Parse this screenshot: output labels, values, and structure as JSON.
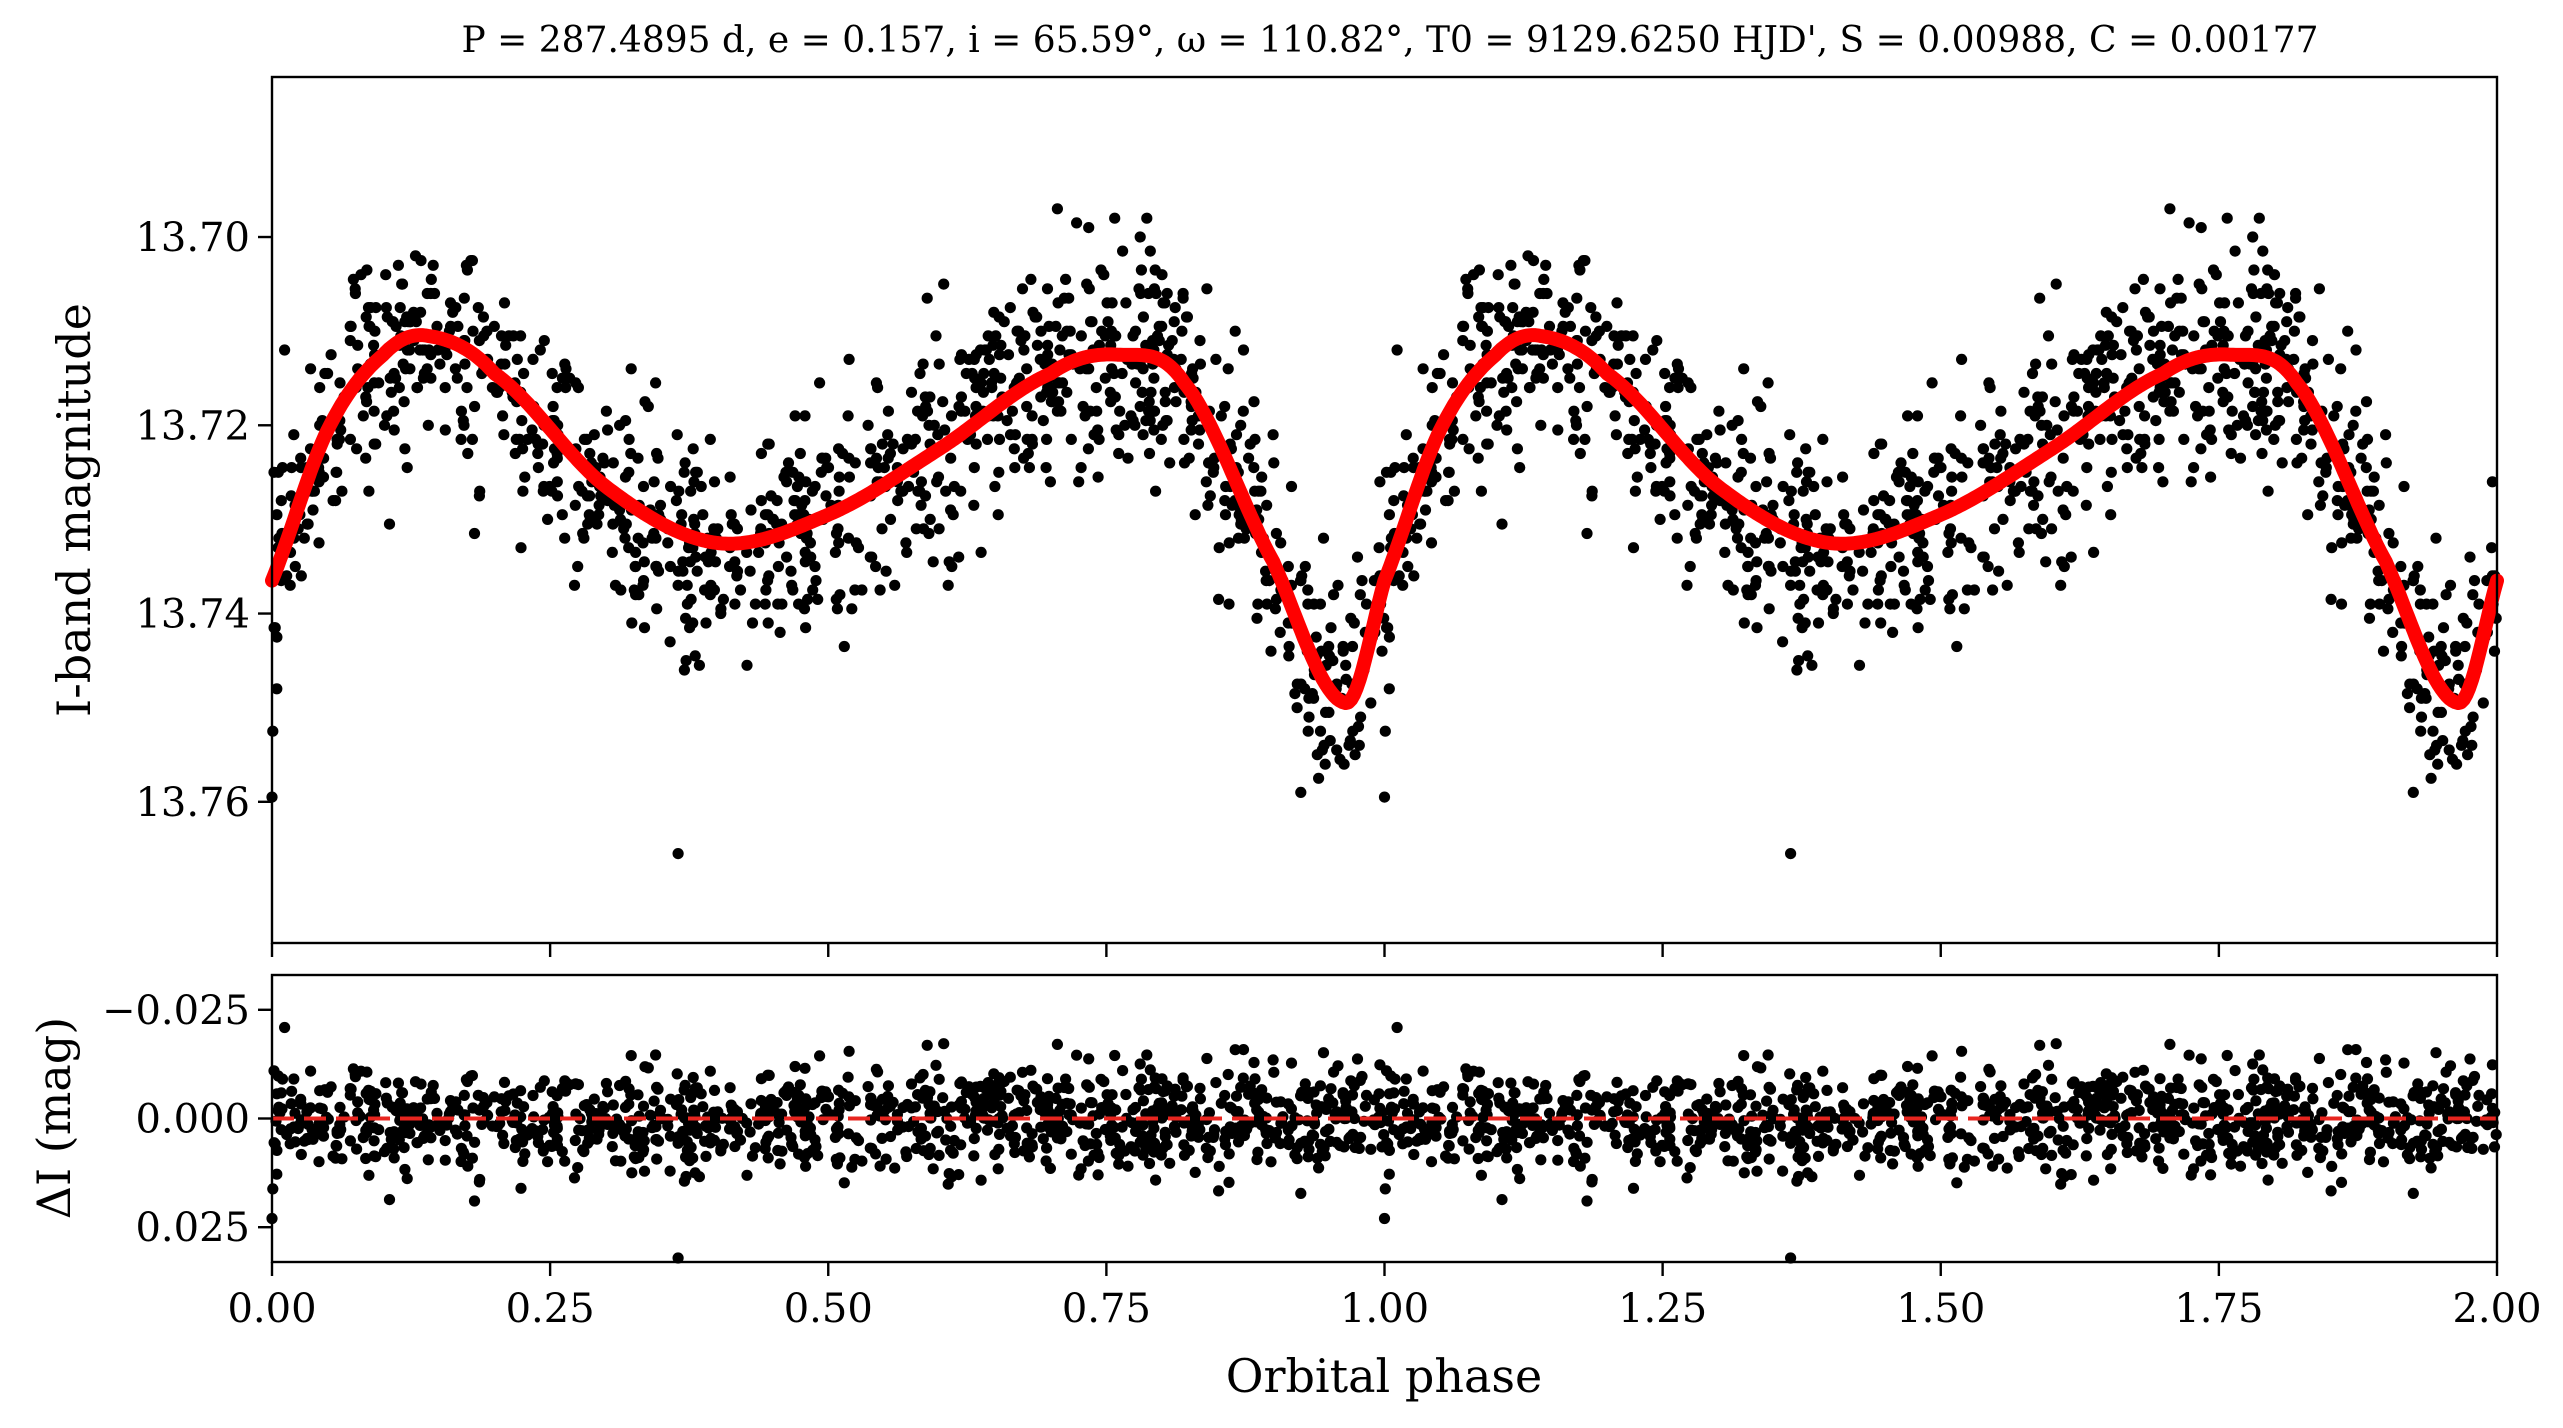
{
  "chart_data": [
    {
      "type": "scatter",
      "panel": "main",
      "title": "P = 287.4895 d, e = 0.157, i = 65.59°, ω = 110.82°, T0 = 9129.6250 HJD', S = 0.00988, C = 0.00177",
      "xlabel": "",
      "ylabel": "I-band magnitude",
      "xlim": [
        0.0,
        2.0
      ],
      "ylim": [
        13.775,
        13.683
      ],
      "y_inverted": true,
      "y_ticks": [
        13.7,
        13.72,
        13.74,
        13.76
      ],
      "y_tick_labels": [
        "13.70",
        "13.72",
        "13.74",
        "13.76"
      ],
      "x_ticks": [
        0.0,
        0.25,
        0.5,
        0.75,
        1.0,
        1.25,
        1.5,
        1.75,
        2.0
      ],
      "x_tick_labels": [],
      "grid": false,
      "point_color": "#000000",
      "model_color": "#ff0000",
      "model_curve": {
        "x": [
          0.0,
          0.05,
          0.1,
          0.14,
          0.2,
          0.3,
          0.4,
          0.5,
          0.6,
          0.7,
          0.76,
          0.82,
          0.9,
          0.965,
          1.0
        ],
        "y": [
          13.7365,
          13.7205,
          13.7125,
          13.7105,
          13.7145,
          13.7265,
          13.7325,
          13.7295,
          13.7225,
          13.7145,
          13.7125,
          13.7155,
          13.7345,
          13.7495,
          13.7365
        ]
      },
      "data_points_note_values": {
        "n_points_per_cycle": 1100,
        "scatter_sigma_mag": 0.006,
        "outliers": [
          {
            "x": 0.365,
            "y": 13.7655
          },
          {
            "x": 0.0,
            "y": 13.7595
          },
          {
            "x": 0.96,
            "y": 13.7555
          }
        ]
      }
    },
    {
      "type": "scatter",
      "panel": "residuals",
      "xlabel": "Orbital phase",
      "ylabel": "ΔI (mag)",
      "xlim": [
        0.0,
        2.0
      ],
      "ylim": [
        0.033,
        -0.033
      ],
      "y_inverted": true,
      "y_ticks": [
        -0.025,
        0.0,
        0.025
      ],
      "y_tick_labels": [
        "−0.025",
        "0.000",
        "0.025"
      ],
      "x_ticks": [
        0.0,
        0.25,
        0.5,
        0.75,
        1.0,
        1.25,
        1.5,
        1.75,
        2.0
      ],
      "x_tick_labels": [
        "0.00",
        "0.25",
        "0.50",
        "0.75",
        "1.00",
        "1.25",
        "1.50",
        "1.75",
        "2.00"
      ],
      "zero_line": 0.0,
      "zero_line_color": "#e8251f",
      "point_color": "#000000",
      "grid": false
    }
  ]
}
